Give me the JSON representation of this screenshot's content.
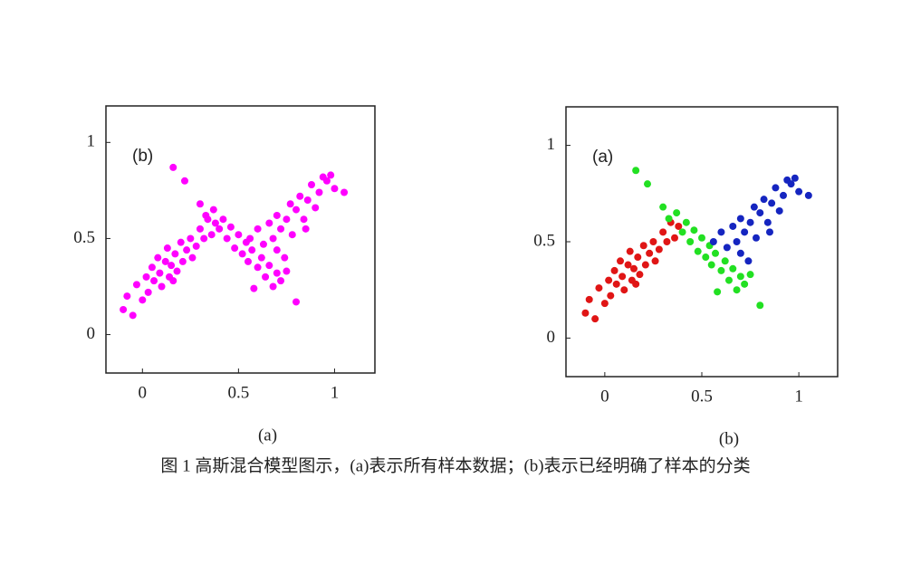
{
  "chart_data": [
    {
      "type": "scatter",
      "annotation": "(b)",
      "panel_label": "(a)",
      "xlim": [
        -0.19,
        1.21
      ],
      "ylim": [
        -0.2,
        1.19
      ],
      "xticks": [
        0,
        0.5,
        1
      ],
      "yticks": [
        0,
        0.5,
        1
      ],
      "series": [
        {
          "color": "#ff00ff",
          "x": [
            -0.1,
            -0.08,
            -0.05,
            -0.03,
            0,
            0.02,
            0.03,
            0.05,
            0.06,
            0.08,
            0.09,
            0.1,
            0.12,
            0.13,
            0.14,
            0.15,
            0.17,
            0.18,
            0.2,
            0.21,
            0.23,
            0.25,
            0.26,
            0.28,
            0.3,
            0.32,
            0.34,
            0.36,
            0.38,
            0.16,
            0.16,
            0.22,
            0.3,
            0.33,
            0.37,
            0.4,
            0.42,
            0.44,
            0.46,
            0.48,
            0.5,
            0.52,
            0.54,
            0.55,
            0.57,
            0.6,
            0.62,
            0.64,
            0.66,
            0.68,
            0.7,
            0.72,
            0.75,
            0.8,
            0.58,
            0.56,
            0.6,
            0.63,
            0.66,
            0.68,
            0.7,
            0.72,
            0.75,
            0.77,
            0.78,
            0.8,
            0.82,
            0.84,
            0.86,
            0.88,
            0.9,
            0.92,
            0.94,
            0.96,
            1.0,
            1.05,
            0.74,
            0.7,
            0.85,
            0.98
          ],
          "y": [
            0.13,
            0.2,
            0.1,
            0.26,
            0.18,
            0.3,
            0.22,
            0.35,
            0.28,
            0.4,
            0.32,
            0.25,
            0.38,
            0.45,
            0.3,
            0.36,
            0.42,
            0.33,
            0.48,
            0.38,
            0.44,
            0.5,
            0.4,
            0.46,
            0.55,
            0.5,
            0.6,
            0.52,
            0.58,
            0.28,
            0.87,
            0.8,
            0.68,
            0.62,
            0.65,
            0.55,
            0.6,
            0.5,
            0.56,
            0.45,
            0.52,
            0.42,
            0.48,
            0.38,
            0.44,
            0.35,
            0.4,
            0.3,
            0.36,
            0.25,
            0.32,
            0.28,
            0.33,
            0.17,
            0.24,
            0.5,
            0.55,
            0.47,
            0.58,
            0.5,
            0.62,
            0.55,
            0.6,
            0.68,
            0.52,
            0.65,
            0.72,
            0.6,
            0.7,
            0.78,
            0.66,
            0.74,
            0.82,
            0.8,
            0.76,
            0.74,
            0.4,
            0.44,
            0.55,
            0.83
          ]
        }
      ]
    },
    {
      "type": "scatter",
      "annotation": "(a)",
      "panel_label": "(b)",
      "xlim": [
        -0.2,
        1.2
      ],
      "ylim": [
        -0.2,
        1.2
      ],
      "xticks": [
        0,
        0.5,
        1
      ],
      "yticks": [
        0,
        0.5,
        1
      ],
      "series": [
        {
          "color": "#e01515",
          "x": [
            -0.1,
            -0.08,
            -0.05,
            -0.03,
            0,
            0.02,
            0.03,
            0.05,
            0.06,
            0.08,
            0.09,
            0.1,
            0.12,
            0.13,
            0.14,
            0.15,
            0.17,
            0.18,
            0.2,
            0.21,
            0.23,
            0.25,
            0.26,
            0.28,
            0.3,
            0.32,
            0.34,
            0.36,
            0.38,
            0.16
          ],
          "y": [
            0.13,
            0.2,
            0.1,
            0.26,
            0.18,
            0.3,
            0.22,
            0.35,
            0.28,
            0.4,
            0.32,
            0.25,
            0.38,
            0.45,
            0.3,
            0.36,
            0.42,
            0.33,
            0.48,
            0.38,
            0.44,
            0.5,
            0.4,
            0.46,
            0.55,
            0.5,
            0.6,
            0.52,
            0.58,
            0.28
          ]
        },
        {
          "color": "#22e022",
          "x": [
            0.16,
            0.22,
            0.3,
            0.33,
            0.37,
            0.4,
            0.42,
            0.44,
            0.46,
            0.48,
            0.5,
            0.52,
            0.54,
            0.55,
            0.57,
            0.6,
            0.62,
            0.64,
            0.66,
            0.68,
            0.7,
            0.72,
            0.75,
            0.8,
            0.58
          ],
          "y": [
            0.87,
            0.8,
            0.68,
            0.62,
            0.65,
            0.55,
            0.6,
            0.5,
            0.56,
            0.45,
            0.52,
            0.42,
            0.48,
            0.38,
            0.44,
            0.35,
            0.4,
            0.3,
            0.36,
            0.25,
            0.32,
            0.28,
            0.33,
            0.17,
            0.24
          ]
        },
        {
          "color": "#1525c0",
          "x": [
            0.56,
            0.6,
            0.63,
            0.66,
            0.68,
            0.7,
            0.72,
            0.75,
            0.77,
            0.78,
            0.8,
            0.82,
            0.84,
            0.86,
            0.88,
            0.9,
            0.92,
            0.94,
            0.96,
            1.0,
            1.05,
            0.74,
            0.7,
            0.85,
            0.98
          ],
          "y": [
            0.5,
            0.55,
            0.47,
            0.58,
            0.5,
            0.62,
            0.55,
            0.6,
            0.68,
            0.52,
            0.65,
            0.72,
            0.6,
            0.7,
            0.78,
            0.66,
            0.74,
            0.82,
            0.8,
            0.76,
            0.74,
            0.4,
            0.44,
            0.55,
            0.83
          ]
        }
      ]
    }
  ],
  "caption": "图 1  高斯混合模型图示，(a)表示所有样本数据；(b)表示已经明确了样本的分类"
}
